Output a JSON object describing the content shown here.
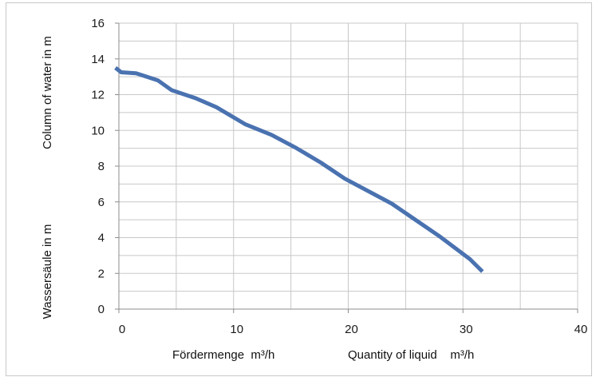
{
  "chart_data": {
    "type": "line",
    "title": "",
    "ylabel_top": "Column of water in m",
    "ylabel_bottom": "Wassersäule in m",
    "xlabel_left": "Fördermenge  m³/h",
    "xlabel_right": "Quantity of liquid    m³/h",
    "xlim": [
      0,
      40
    ],
    "ylim": [
      0,
      16
    ],
    "x_ticks": [
      0,
      10,
      20,
      30,
      40
    ],
    "y_ticks": [
      0,
      2,
      4,
      6,
      8,
      10,
      12,
      14,
      16
    ],
    "x_tick_labels": [
      "0",
      "10",
      "20",
      "30",
      "40"
    ],
    "y_tick_labels": [
      "0",
      "2",
      "4",
      "6",
      "8",
      "10",
      "12",
      "14",
      "16"
    ],
    "grid": true,
    "series": [
      {
        "name": "",
        "color": "#4a72b0",
        "x": [
          -0.3,
          0.2,
          1.5,
          3.4,
          4.6,
          6.7,
          8.5,
          11,
          13.3,
          15.5,
          17.6,
          19.7,
          23.8,
          27.9,
          30.6,
          31.7
        ],
        "y": [
          13.5,
          13.25,
          13.2,
          12.8,
          12.25,
          11.8,
          11.3,
          10.35,
          9.75,
          9.0,
          8.2,
          7.3,
          5.9,
          4.1,
          2.8,
          2.1
        ]
      }
    ]
  }
}
